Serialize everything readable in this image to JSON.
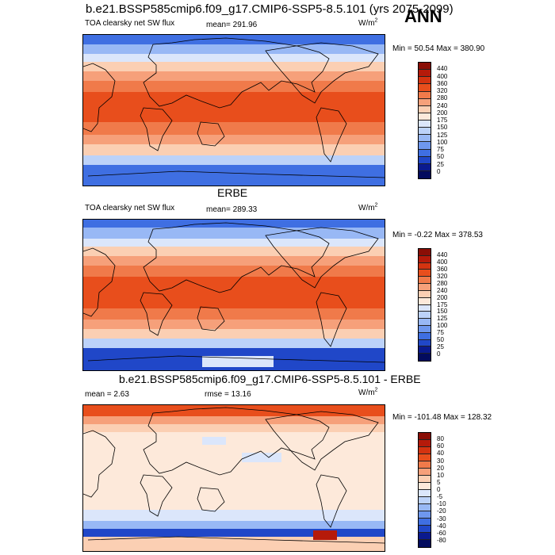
{
  "main_title": "b.e21.BSSP585cmip6.f09_g17.CMIP6-SSP5-8.5.101 (yrs 2075-2099)",
  "season": "ANN",
  "panels": [
    {
      "title": "",
      "left_label": "TOA clearsky net SW flux",
      "center_label": "mean= 291.96",
      "units": "W/m",
      "units_sup": "2",
      "min_max": "Min =  50.54  Max = 380.90",
      "colorbar": {
        "labels": [
          "440",
          "400",
          "360",
          "320",
          "280",
          "240",
          "200",
          "175",
          "150",
          "125",
          "100",
          "75",
          "50",
          "25",
          "0"
        ],
        "colors": [
          "#8a0e06",
          "#b51a0a",
          "#d43310",
          "#e84e1c",
          "#f07a4a",
          "#f6a07a",
          "#fbcfb3",
          "#fde9da",
          "#dbe6fb",
          "#bcd2f9",
          "#98b8f5",
          "#6e97ee",
          "#3f6fe2",
          "#2047c8",
          "#0a1a8f",
          "#030b5e"
        ]
      }
    },
    {
      "title": "ERBE",
      "left_label": "TOA clearsky net SW flux",
      "center_label": "mean= 289.33",
      "units": "W/m",
      "units_sup": "2",
      "min_max": "Min =  -0.22  Max = 378.53",
      "colorbar": {
        "labels": [
          "440",
          "400",
          "360",
          "320",
          "280",
          "240",
          "200",
          "175",
          "150",
          "125",
          "100",
          "75",
          "50",
          "25",
          "0"
        ],
        "colors": [
          "#8a0e06",
          "#b51a0a",
          "#d43310",
          "#e84e1c",
          "#f07a4a",
          "#f6a07a",
          "#fbcfb3",
          "#fde9da",
          "#dbe6fb",
          "#bcd2f9",
          "#98b8f5",
          "#6e97ee",
          "#3f6fe2",
          "#2047c8",
          "#0a1a8f",
          "#030b5e"
        ]
      }
    },
    {
      "title": "b.e21.BSSP585cmip6.f09_g17.CMIP6-SSP5-8.5.101 - ERBE",
      "left_label": "mean =   2.63",
      "center_label": "rmse =  13.16",
      "units": "W/m",
      "units_sup": "2",
      "min_max": "Min = -101.48  Max = 128.32",
      "colorbar": {
        "labels": [
          "80",
          "60",
          "40",
          "30",
          "20",
          "10",
          "5",
          "0",
          "-5",
          "-10",
          "-20",
          "-30",
          "-40",
          "-60",
          "-80"
        ],
        "colors": [
          "#8a0e06",
          "#b51a0a",
          "#d43310",
          "#e84e1c",
          "#f07a4a",
          "#f6a07a",
          "#fbcfb3",
          "#fde9da",
          "#dbe6fb",
          "#bcd2f9",
          "#98b8f5",
          "#6e97ee",
          "#3f6fe2",
          "#2047c8",
          "#0a1a8f",
          "#030b5e"
        ]
      }
    }
  ]
}
